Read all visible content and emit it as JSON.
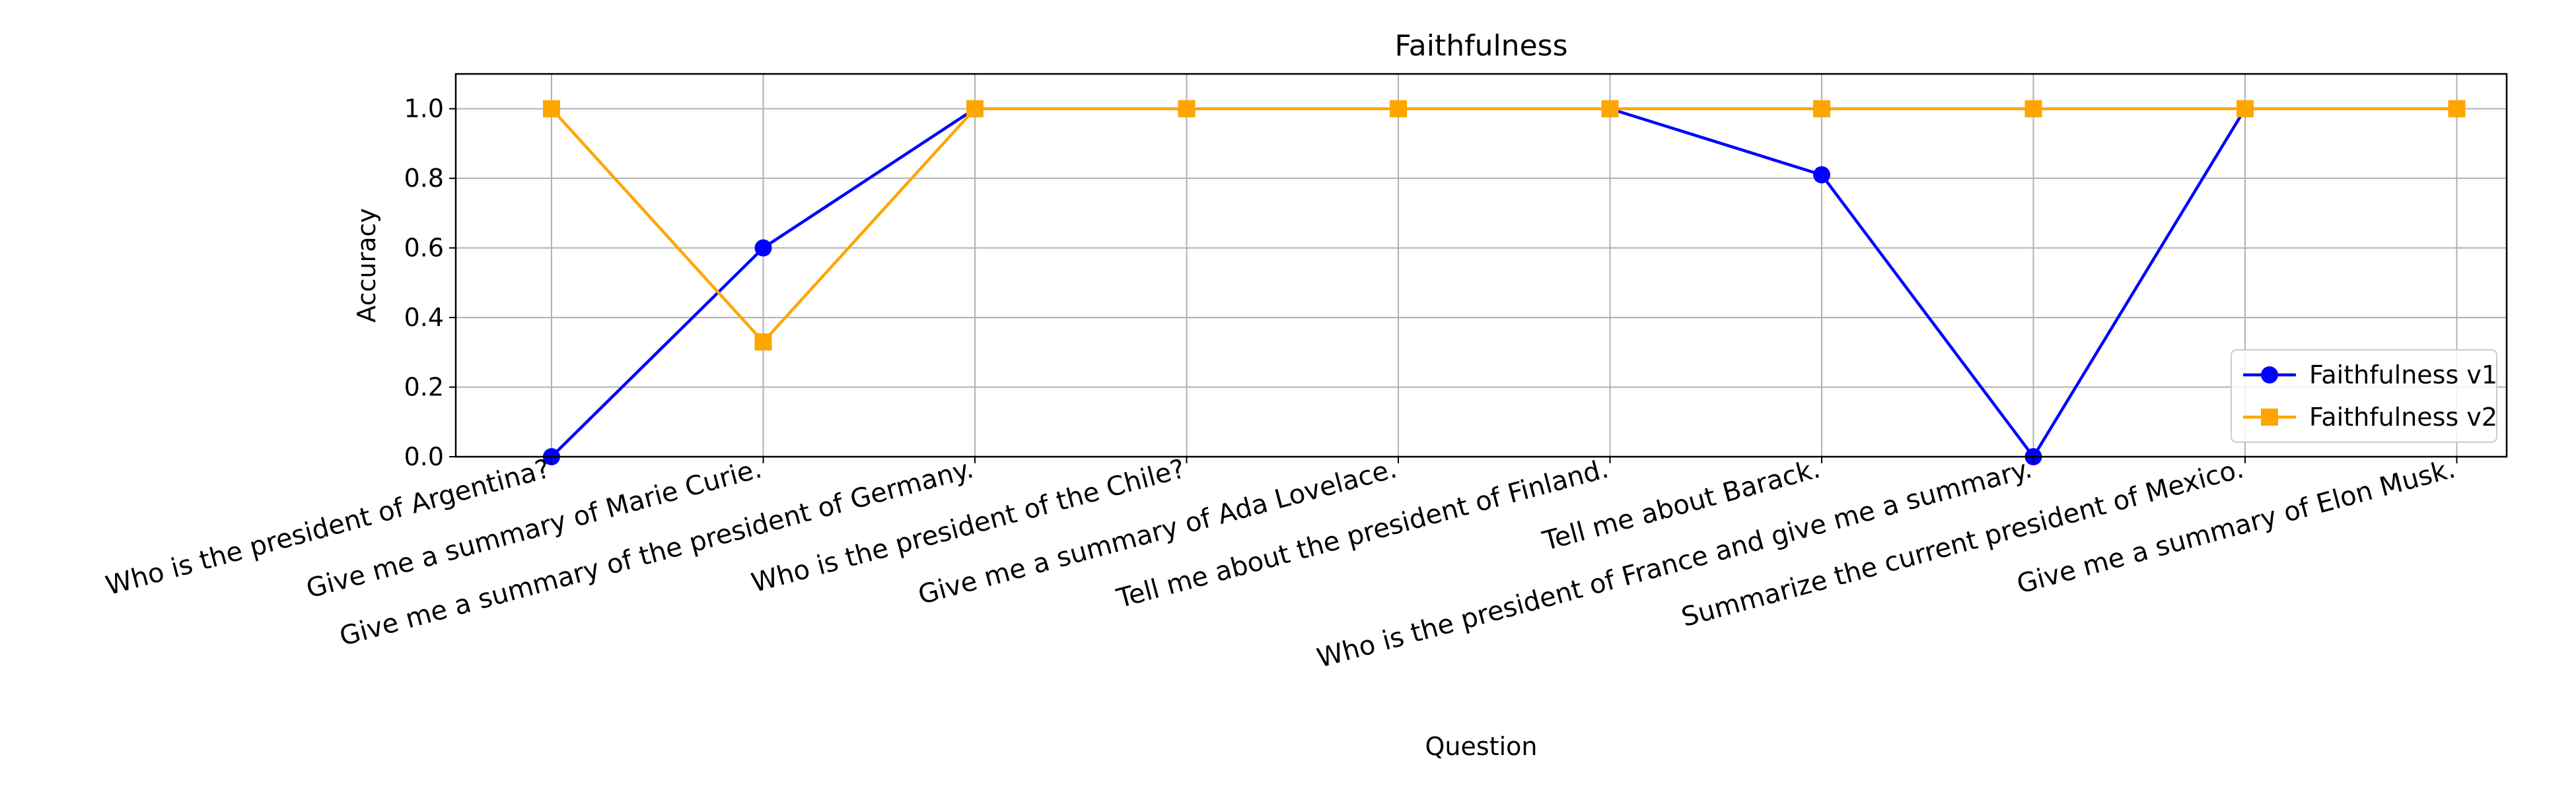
{
  "chart_data": {
    "type": "line",
    "title": "Faithfulness",
    "xlabel": "Question",
    "ylabel": "Accuracy",
    "ylim": [
      0.0,
      1.1
    ],
    "yticks": [
      "0.0",
      "0.2",
      "0.4",
      "0.6",
      "0.8",
      "1.0"
    ],
    "grid": true,
    "legend_position": "lower-right",
    "categories": [
      "Who is the president of Argentina?",
      "Give me a summary of Marie Curie.",
      "Give me a summary of the president of Germany.",
      "Who is the president of the Chile?",
      "Give me a summary of Ada Lovelace.",
      "Tell me about the president of Finland.",
      "Tell me about Barack.",
      "Who is the president of France and give me a summary.",
      "Summarize the current president of Mexico.",
      "Give me a summary of Elon Musk."
    ],
    "series": [
      {
        "name": "Faithfulness v1",
        "color": "#0000ff",
        "marker": "circle",
        "values": [
          0.0,
          0.6,
          1.0,
          1.0,
          1.0,
          1.0,
          0.81,
          0.0,
          1.0,
          1.0
        ]
      },
      {
        "name": "Faithfulness v2",
        "color": "#ffa500",
        "marker": "square",
        "values": [
          1.0,
          0.33,
          1.0,
          1.0,
          1.0,
          1.0,
          1.0,
          1.0,
          1.0,
          1.0
        ]
      }
    ]
  }
}
